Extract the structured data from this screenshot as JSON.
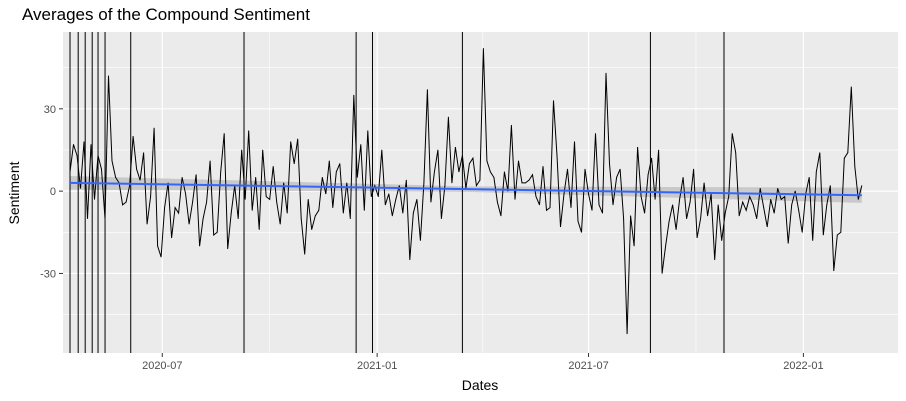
{
  "chart_data": {
    "type": "line",
    "title": "Averages of the Compound Sentiment",
    "xlabel": "Dates",
    "ylabel": "Sentiment",
    "x_range": [
      "2020-04-07",
      "2022-03-23"
    ],
    "ylim": [
      -59,
      58
    ],
    "x_ticks": [
      {
        "date": "2020-07-01",
        "label": "2020-07"
      },
      {
        "date": "2021-01-01",
        "label": "2021-01"
      },
      {
        "date": "2021-07-01",
        "label": "2021-07"
      },
      {
        "date": "2022-01-01",
        "label": "2022-01"
      }
    ],
    "y_ticks": [
      {
        "value": -30,
        "label": "-30"
      },
      {
        "value": 0,
        "label": "0"
      },
      {
        "value": 30,
        "label": "30"
      }
    ],
    "grid": true,
    "legend": "none",
    "colors": {
      "panel_bg": "#ebebeb",
      "grid": "#ffffff",
      "series": "#000000",
      "trend": "#3366ff",
      "band": "#c0c0c0"
    },
    "spike_dates": [
      "2020-04-13",
      "2020-04-20",
      "2020-04-26",
      "2020-05-02",
      "2020-05-07",
      "2020-05-13",
      "2020-06-04",
      "2020-09-09",
      "2020-12-14",
      "2020-12-28",
      "2021-03-15",
      "2021-08-23",
      "2021-10-25"
    ],
    "series": [
      {
        "values": [
          {
            "x": "2020-04-13",
            "y": 7
          },
          {
            "x": "2020-04-16",
            "y": 17
          },
          {
            "x": "2020-04-19",
            "y": 13
          },
          {
            "x": "2020-04-22",
            "y": 1
          },
          {
            "x": "2020-04-25",
            "y": 18
          },
          {
            "x": "2020-04-28",
            "y": -10
          },
          {
            "x": "2020-05-01",
            "y": 17
          },
          {
            "x": "2020-05-04",
            "y": -3
          },
          {
            "x": "2020-05-07",
            "y": 13
          },
          {
            "x": "2020-05-10",
            "y": 8
          },
          {
            "x": "2020-05-13",
            "y": -10
          },
          {
            "x": "2020-05-16",
            "y": 42
          },
          {
            "x": "2020-05-19",
            "y": 11
          },
          {
            "x": "2020-05-22",
            "y": 5
          },
          {
            "x": "2020-05-25",
            "y": 3
          },
          {
            "x": "2020-05-28",
            "y": -5
          },
          {
            "x": "2020-05-31",
            "y": -4
          },
          {
            "x": "2020-06-03",
            "y": 2
          },
          {
            "x": "2020-06-06",
            "y": 20
          },
          {
            "x": "2020-06-09",
            "y": 8
          },
          {
            "x": "2020-06-12",
            "y": 4
          },
          {
            "x": "2020-06-15",
            "y": 14
          },
          {
            "x": "2020-06-18",
            "y": -12
          },
          {
            "x": "2020-06-21",
            "y": -2
          },
          {
            "x": "2020-06-24",
            "y": 23
          },
          {
            "x": "2020-06-27",
            "y": -20
          },
          {
            "x": "2020-06-30",
            "y": -24
          },
          {
            "x": "2020-07-03",
            "y": -6
          },
          {
            "x": "2020-07-06",
            "y": 3
          },
          {
            "x": "2020-07-09",
            "y": -17
          },
          {
            "x": "2020-07-12",
            "y": -6
          },
          {
            "x": "2020-07-15",
            "y": -8
          },
          {
            "x": "2020-07-18",
            "y": 5
          },
          {
            "x": "2020-07-21",
            "y": -1
          },
          {
            "x": "2020-07-24",
            "y": -12
          },
          {
            "x": "2020-07-27",
            "y": -4
          },
          {
            "x": "2020-07-30",
            "y": 6
          },
          {
            "x": "2020-08-02",
            "y": -20
          },
          {
            "x": "2020-08-05",
            "y": -10
          },
          {
            "x": "2020-08-08",
            "y": -4
          },
          {
            "x": "2020-08-11",
            "y": 11
          },
          {
            "x": "2020-08-14",
            "y": -16
          },
          {
            "x": "2020-08-17",
            "y": -15
          },
          {
            "x": "2020-08-20",
            "y": 7
          },
          {
            "x": "2020-08-23",
            "y": 21
          },
          {
            "x": "2020-08-26",
            "y": -21
          },
          {
            "x": "2020-08-29",
            "y": -8
          },
          {
            "x": "2020-09-01",
            "y": 2
          },
          {
            "x": "2020-09-04",
            "y": -10
          },
          {
            "x": "2020-09-07",
            "y": 15
          },
          {
            "x": "2020-09-10",
            "y": -3
          },
          {
            "x": "2020-09-13",
            "y": 22
          },
          {
            "x": "2020-09-16",
            "y": -7
          },
          {
            "x": "2020-09-19",
            "y": 5
          },
          {
            "x": "2020-09-22",
            "y": -14
          },
          {
            "x": "2020-09-25",
            "y": 15
          },
          {
            "x": "2020-09-28",
            "y": -2
          },
          {
            "x": "2020-10-01",
            "y": -3
          },
          {
            "x": "2020-10-04",
            "y": 9
          },
          {
            "x": "2020-10-07",
            "y": -4
          },
          {
            "x": "2020-10-10",
            "y": -12
          },
          {
            "x": "2020-10-13",
            "y": 3
          },
          {
            "x": "2020-10-16",
            "y": -8
          },
          {
            "x": "2020-10-19",
            "y": 18
          },
          {
            "x": "2020-10-22",
            "y": 10
          },
          {
            "x": "2020-10-25",
            "y": 19
          },
          {
            "x": "2020-10-28",
            "y": -10
          },
          {
            "x": "2020-10-31",
            "y": -23
          },
          {
            "x": "2020-11-03",
            "y": -3
          },
          {
            "x": "2020-11-06",
            "y": -14
          },
          {
            "x": "2020-11-09",
            "y": -9
          },
          {
            "x": "2020-11-12",
            "y": -7
          },
          {
            "x": "2020-11-15",
            "y": 5
          },
          {
            "x": "2020-11-18",
            "y": -1
          },
          {
            "x": "2020-11-21",
            "y": 11
          },
          {
            "x": "2020-11-24",
            "y": -6
          },
          {
            "x": "2020-11-27",
            "y": 7
          },
          {
            "x": "2020-11-30",
            "y": 10
          },
          {
            "x": "2020-12-03",
            "y": -8
          },
          {
            "x": "2020-12-06",
            "y": 3
          },
          {
            "x": "2020-12-09",
            "y": -10
          },
          {
            "x": "2020-12-12",
            "y": 35
          },
          {
            "x": "2020-12-15",
            "y": 5
          },
          {
            "x": "2020-12-18",
            "y": 17
          },
          {
            "x": "2020-12-21",
            "y": -7
          },
          {
            "x": "2020-12-24",
            "y": 22
          },
          {
            "x": "2020-12-27",
            "y": -2
          },
          {
            "x": "2020-12-30",
            "y": 2
          },
          {
            "x": "2021-01-02",
            "y": -2
          },
          {
            "x": "2021-01-05",
            "y": 15
          },
          {
            "x": "2021-01-08",
            "y": -5
          },
          {
            "x": "2021-01-11",
            "y": -1
          },
          {
            "x": "2021-01-14",
            "y": -9
          },
          {
            "x": "2021-01-17",
            "y": -3
          },
          {
            "x": "2021-01-20",
            "y": 2
          },
          {
            "x": "2021-01-23",
            "y": -8
          },
          {
            "x": "2021-01-26",
            "y": 4
          },
          {
            "x": "2021-01-29",
            "y": -25
          },
          {
            "x": "2021-02-01",
            "y": -8
          },
          {
            "x": "2021-02-04",
            "y": -3
          },
          {
            "x": "2021-02-07",
            "y": -18
          },
          {
            "x": "2021-02-10",
            "y": 3
          },
          {
            "x": "2021-02-13",
            "y": 37
          },
          {
            "x": "2021-02-16",
            "y": -4
          },
          {
            "x": "2021-02-19",
            "y": 7
          },
          {
            "x": "2021-02-22",
            "y": 15
          },
          {
            "x": "2021-02-25",
            "y": -10
          },
          {
            "x": "2021-02-28",
            "y": 2
          },
          {
            "x": "2021-03-03",
            "y": 27
          },
          {
            "x": "2021-03-06",
            "y": 3
          },
          {
            "x": "2021-03-09",
            "y": 16
          },
          {
            "x": "2021-03-12",
            "y": 7
          },
          {
            "x": "2021-03-15",
            "y": 13
          },
          {
            "x": "2021-03-18",
            "y": 1
          },
          {
            "x": "2021-03-21",
            "y": 10
          },
          {
            "x": "2021-03-24",
            "y": 12
          },
          {
            "x": "2021-03-27",
            "y": 2
          },
          {
            "x": "2021-03-30",
            "y": 4
          },
          {
            "x": "2021-04-02",
            "y": 52
          },
          {
            "x": "2021-04-05",
            "y": 11
          },
          {
            "x": "2021-04-08",
            "y": 7
          },
          {
            "x": "2021-04-11",
            "y": 5
          },
          {
            "x": "2021-04-14",
            "y": -4
          },
          {
            "x": "2021-04-17",
            "y": -9
          },
          {
            "x": "2021-04-20",
            "y": 7
          },
          {
            "x": "2021-04-23",
            "y": 0
          },
          {
            "x": "2021-04-26",
            "y": 24
          },
          {
            "x": "2021-04-29",
            "y": -3
          },
          {
            "x": "2021-05-02",
            "y": 11
          },
          {
            "x": "2021-05-05",
            "y": 3
          },
          {
            "x": "2021-05-08",
            "y": 3
          },
          {
            "x": "2021-05-11",
            "y": 4
          },
          {
            "x": "2021-05-14",
            "y": 6
          },
          {
            "x": "2021-05-17",
            "y": -2
          },
          {
            "x": "2021-05-20",
            "y": -5
          },
          {
            "x": "2021-05-23",
            "y": 9
          },
          {
            "x": "2021-05-26",
            "y": -7
          },
          {
            "x": "2021-05-29",
            "y": -6
          },
          {
            "x": "2021-06-01",
            "y": 33
          },
          {
            "x": "2021-06-04",
            "y": 13
          },
          {
            "x": "2021-06-07",
            "y": -13
          },
          {
            "x": "2021-06-10",
            "y": -1
          },
          {
            "x": "2021-06-13",
            "y": 8
          },
          {
            "x": "2021-06-16",
            "y": -6
          },
          {
            "x": "2021-06-19",
            "y": 18
          },
          {
            "x": "2021-06-22",
            "y": -11
          },
          {
            "x": "2021-06-25",
            "y": -15
          },
          {
            "x": "2021-06-28",
            "y": 8
          },
          {
            "x": "2021-07-01",
            "y": -1
          },
          {
            "x": "2021-07-04",
            "y": -7
          },
          {
            "x": "2021-07-07",
            "y": 21
          },
          {
            "x": "2021-07-10",
            "y": -5
          },
          {
            "x": "2021-07-13",
            "y": -8
          },
          {
            "x": "2021-07-16",
            "y": 43
          },
          {
            "x": "2021-07-19",
            "y": 10
          },
          {
            "x": "2021-07-22",
            "y": -5
          },
          {
            "x": "2021-07-25",
            "y": 5
          },
          {
            "x": "2021-07-28",
            "y": 8
          },
          {
            "x": "2021-07-31",
            "y": -10
          },
          {
            "x": "2021-08-03",
            "y": -52
          },
          {
            "x": "2021-08-06",
            "y": -9
          },
          {
            "x": "2021-08-09",
            "y": -20
          },
          {
            "x": "2021-08-12",
            "y": 16
          },
          {
            "x": "2021-08-15",
            "y": -2
          },
          {
            "x": "2021-08-18",
            "y": -8
          },
          {
            "x": "2021-08-21",
            "y": 6
          },
          {
            "x": "2021-08-24",
            "y": 12
          },
          {
            "x": "2021-08-27",
            "y": -3
          },
          {
            "x": "2021-08-30",
            "y": 15
          },
          {
            "x": "2021-09-02",
            "y": -30
          },
          {
            "x": "2021-09-05",
            "y": -20
          },
          {
            "x": "2021-09-08",
            "y": -11
          },
          {
            "x": "2021-09-11",
            "y": -5
          },
          {
            "x": "2021-09-14",
            "y": -14
          },
          {
            "x": "2021-09-17",
            "y": -3
          },
          {
            "x": "2021-09-20",
            "y": 5
          },
          {
            "x": "2021-09-23",
            "y": -10
          },
          {
            "x": "2021-09-26",
            "y": -4
          },
          {
            "x": "2021-09-29",
            "y": 8
          },
          {
            "x": "2021-10-02",
            "y": -17
          },
          {
            "x": "2021-10-05",
            "y": -10
          },
          {
            "x": "2021-10-08",
            "y": 3
          },
          {
            "x": "2021-10-11",
            "y": -9
          },
          {
            "x": "2021-10-14",
            "y": -1
          },
          {
            "x": "2021-10-17",
            "y": -25
          },
          {
            "x": "2021-10-20",
            "y": -5
          },
          {
            "x": "2021-10-23",
            "y": -18
          },
          {
            "x": "2021-10-26",
            "y": -8
          },
          {
            "x": "2021-10-29",
            "y": -2
          },
          {
            "x": "2021-11-01",
            "y": 21
          },
          {
            "x": "2021-11-04",
            "y": 14
          },
          {
            "x": "2021-11-07",
            "y": -9
          },
          {
            "x": "2021-11-10",
            "y": -4
          },
          {
            "x": "2021-11-13",
            "y": -7
          },
          {
            "x": "2021-11-16",
            "y": -2
          },
          {
            "x": "2021-11-19",
            "y": -5
          },
          {
            "x": "2021-11-22",
            "y": -10
          },
          {
            "x": "2021-11-25",
            "y": 1
          },
          {
            "x": "2021-11-28",
            "y": -6
          },
          {
            "x": "2021-12-01",
            "y": -13
          },
          {
            "x": "2021-12-04",
            "y": -3
          },
          {
            "x": "2021-12-07",
            "y": -8
          },
          {
            "x": "2021-12-10",
            "y": 1
          },
          {
            "x": "2021-12-13",
            "y": -3
          },
          {
            "x": "2021-12-16",
            "y": -2
          },
          {
            "x": "2021-12-19",
            "y": -19
          },
          {
            "x": "2021-12-22",
            "y": -5
          },
          {
            "x": "2021-12-25",
            "y": 0
          },
          {
            "x": "2021-12-28",
            "y": -7
          },
          {
            "x": "2021-12-31",
            "y": -15
          },
          {
            "x": "2022-01-03",
            "y": -1
          },
          {
            "x": "2022-01-06",
            "y": 5
          },
          {
            "x": "2022-01-09",
            "y": -18
          },
          {
            "x": "2022-01-12",
            "y": 7
          },
          {
            "x": "2022-01-15",
            "y": 14
          },
          {
            "x": "2022-01-18",
            "y": -16
          },
          {
            "x": "2022-01-21",
            "y": -5
          },
          {
            "x": "2022-01-24",
            "y": 2
          },
          {
            "x": "2022-01-27",
            "y": -29
          },
          {
            "x": "2022-01-30",
            "y": -16
          },
          {
            "x": "2022-02-02",
            "y": -15
          },
          {
            "x": "2022-02-05",
            "y": 12
          },
          {
            "x": "2022-02-08",
            "y": 14
          },
          {
            "x": "2022-02-11",
            "y": 38
          },
          {
            "x": "2022-02-14",
            "y": 9
          },
          {
            "x": "2022-02-17",
            "y": -3
          },
          {
            "x": "2022-02-20",
            "y": 2
          }
        ]
      }
    ],
    "trend": {
      "start": {
        "x": "2020-04-13",
        "y": 3.0
      },
      "end": {
        "x": "2022-02-20",
        "y": -1.5
      },
      "band_halfwidth": [
        2.5,
        1.0,
        2.8
      ]
    }
  }
}
